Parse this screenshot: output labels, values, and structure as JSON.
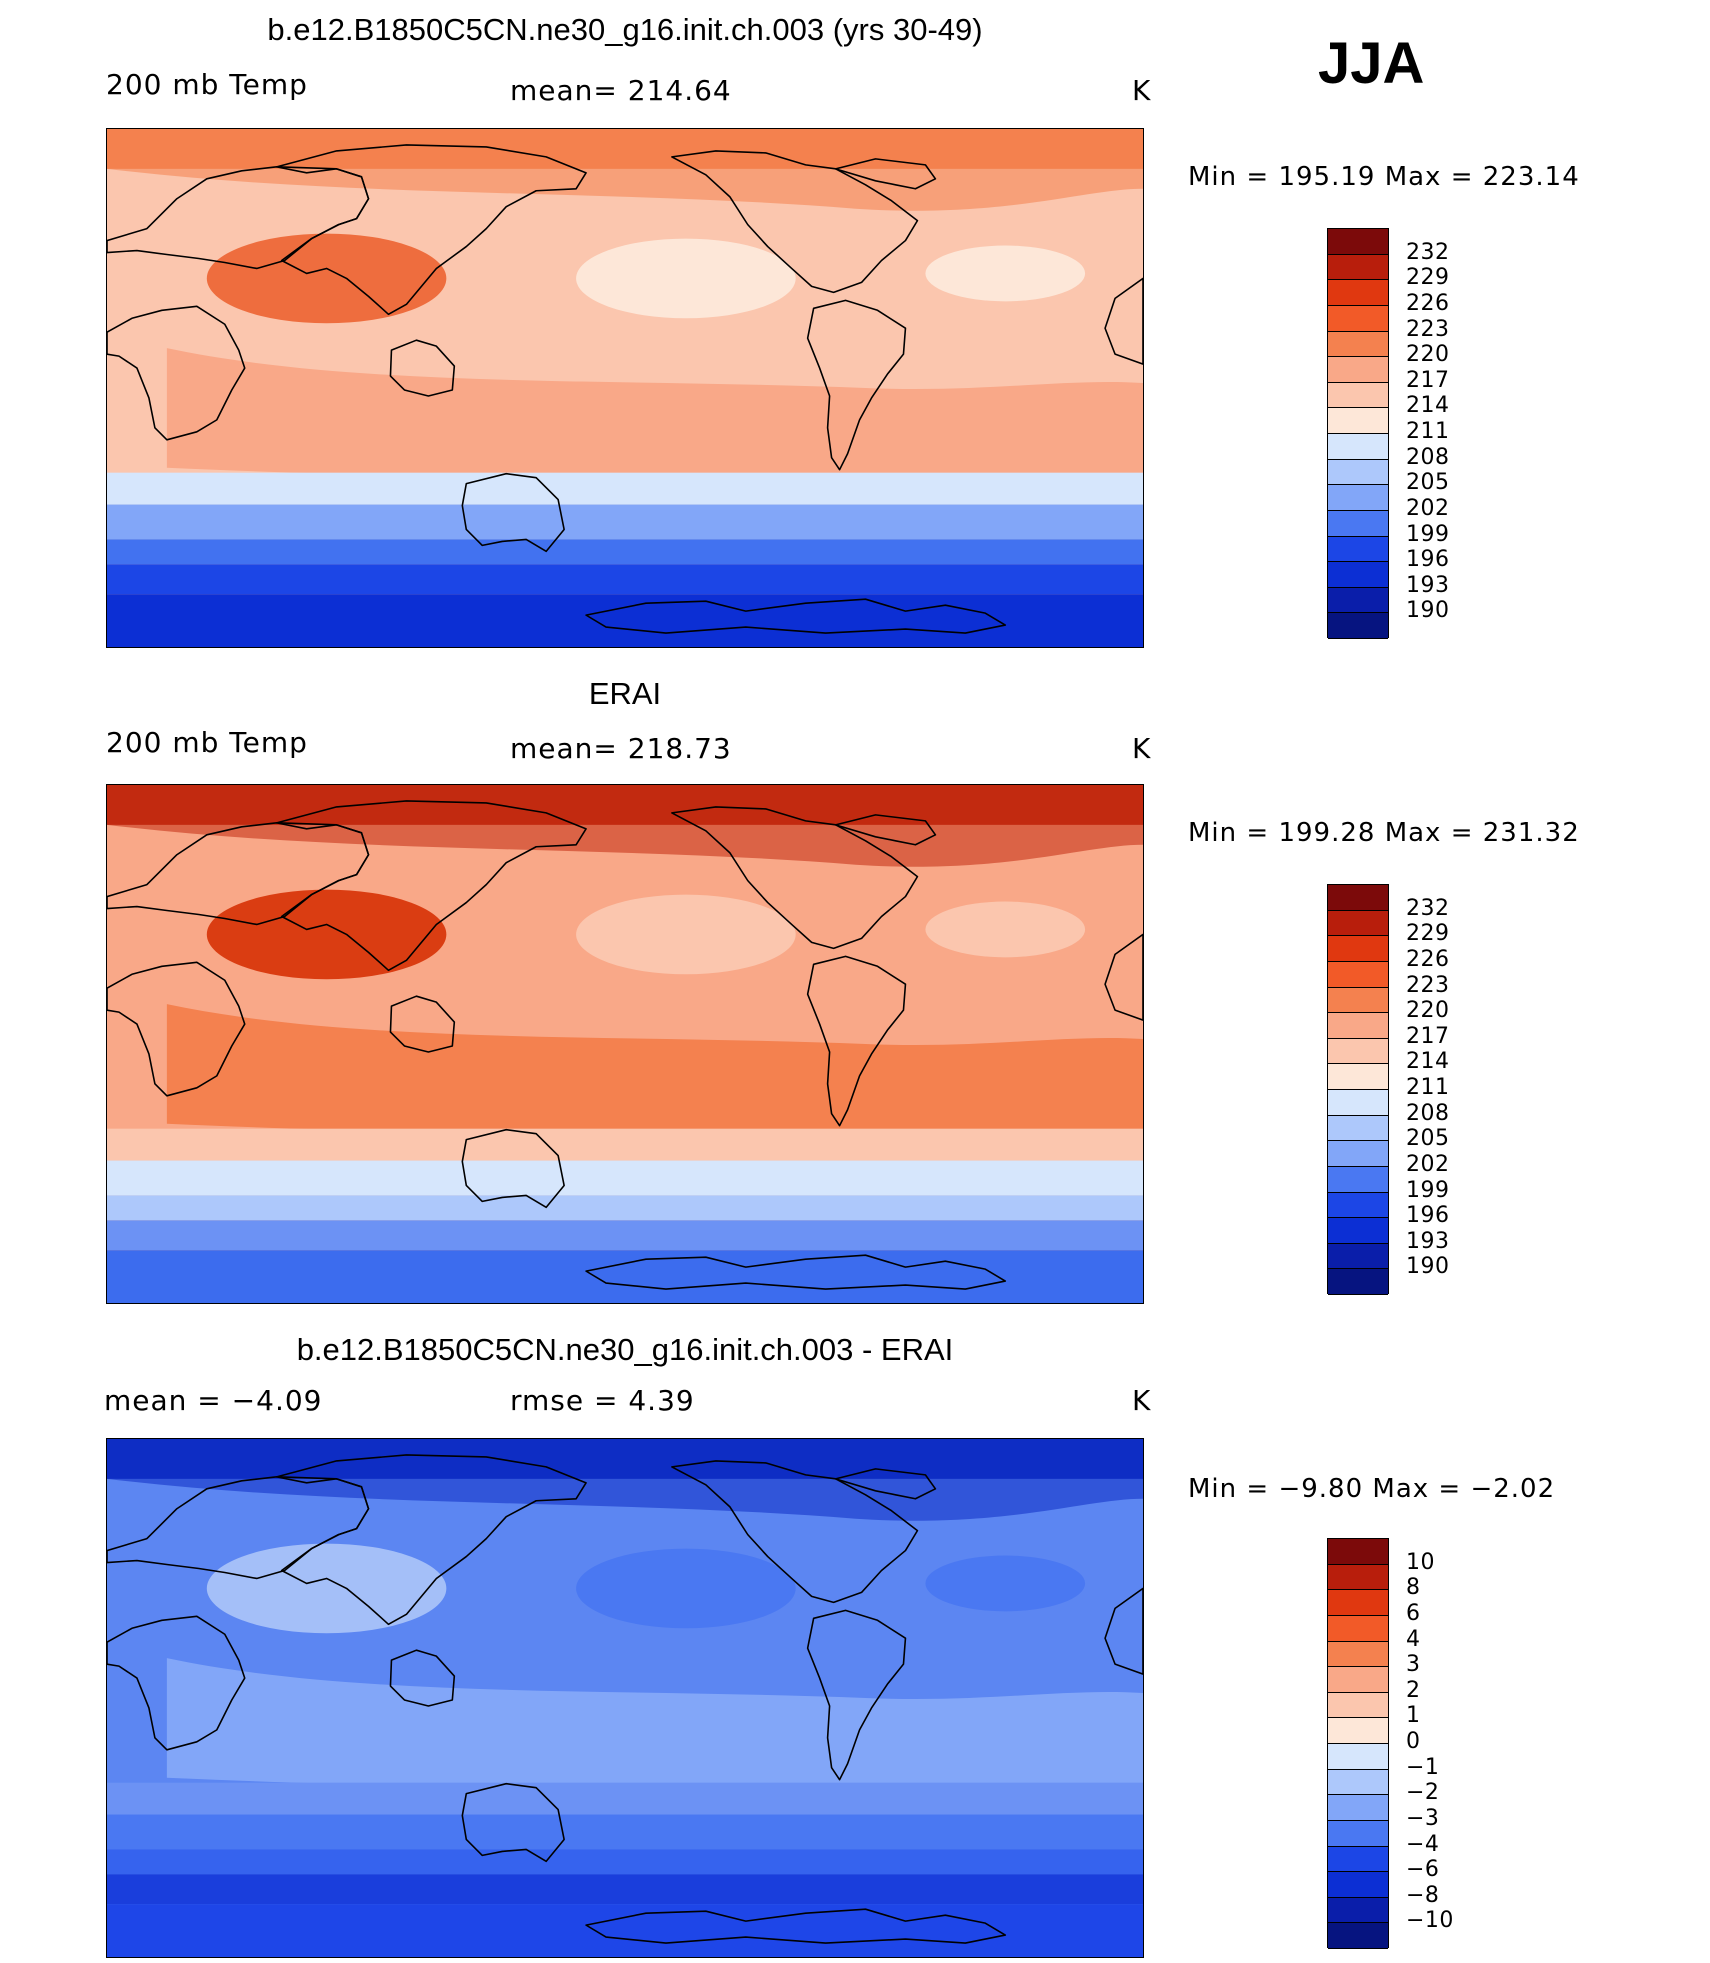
{
  "season": "JJA",
  "panels": [
    {
      "title": "b.e12.B1850C5CN.ne30_g16.init.ch.003 (yrs 30-49)",
      "left_label": "200 mb Temp",
      "center_label": "mean=  214.64",
      "right_label": "K",
      "minmax": "Min  =  195.19  Max  =  223.14",
      "scale": "abs",
      "colors": {
        "south_band1": "#0c2fd4",
        "south_band2": "#1c46e6",
        "south_band3": "#4272f0",
        "south_band4": "#82a6f8",
        "mid_south": "#d6e6fc",
        "tropics": "#f9a888",
        "subtrop": "#fbc6ae",
        "north": "#f4814f",
        "tibet": "#ee6d3e",
        "pac_high": "#fde7d8"
      }
    },
    {
      "title": "ERAI",
      "left_label": "200 mb Temp",
      "center_label": "mean=  218.73",
      "right_label": "K",
      "minmax": "Min  =  199.28  Max  =  231.32",
      "scale": "abs",
      "colors": {
        "south_band1": "#3c6cee",
        "south_band2": "#6c92f4",
        "south_band3": "#adc8fb",
        "south_band4": "#d6e6fc",
        "mid_south": "#fbc6ae",
        "tropics": "#f4814f",
        "subtrop": "#f9a888",
        "north": "#c22a10",
        "tibet": "#da3d12",
        "pac_high": "#fbc6ae"
      }
    },
    {
      "title": "b.e12.B1850C5CN.ne30_g16.init.ch.003 - ERAI",
      "left_label": "mean =     −4.09",
      "center_label": "rmse =      4.39",
      "right_label": "K",
      "minmax": "Min  =    −9.80  Max  =    −2.02",
      "scale": "diff",
      "colors": {
        "south_band1": "#1e46e8",
        "south_band2": "#1a3edc",
        "south_band3": "#3663ee",
        "south_band4": "#4a78f2",
        "mid_south": "#6c92f4",
        "tropics": "#82a6f8",
        "subtrop": "#5c86f2",
        "north": "#0e2dc4",
        "tibet": "#a4bff8",
        "pac_high": "#4a78f2"
      }
    }
  ],
  "colorbars": {
    "abs": {
      "labels": [
        "232",
        "229",
        "226",
        "223",
        "220",
        "217",
        "214",
        "211",
        "208",
        "205",
        "202",
        "199",
        "196",
        "193",
        "190"
      ],
      "colors": [
        "#7c0a0a",
        "#b81e0c",
        "#e03810",
        "#f25a28",
        "#f4814f",
        "#f9a888",
        "#fbc6ae",
        "#fde7d8",
        "#d6e6fc",
        "#adc8fb",
        "#82a6f8",
        "#4a78f2",
        "#1c46e6",
        "#0c2fd4",
        "#0a1eaa",
        "#061480"
      ]
    },
    "diff": {
      "labels": [
        "10",
        "8",
        "6",
        "4",
        "3",
        "2",
        "1",
        "0",
        "−1",
        "−2",
        "−3",
        "−4",
        "−6",
        "−8",
        "−10"
      ],
      "colors": [
        "#7c0a0a",
        "#b81e0c",
        "#e03810",
        "#f25a28",
        "#f4814f",
        "#f9a888",
        "#fbc6ae",
        "#fde7d8",
        "#d6e6fc",
        "#adc8fb",
        "#82a6f8",
        "#4a78f2",
        "#1c46e6",
        "#0c2fd4",
        "#0a1eaa",
        "#061480"
      ]
    }
  }
}
